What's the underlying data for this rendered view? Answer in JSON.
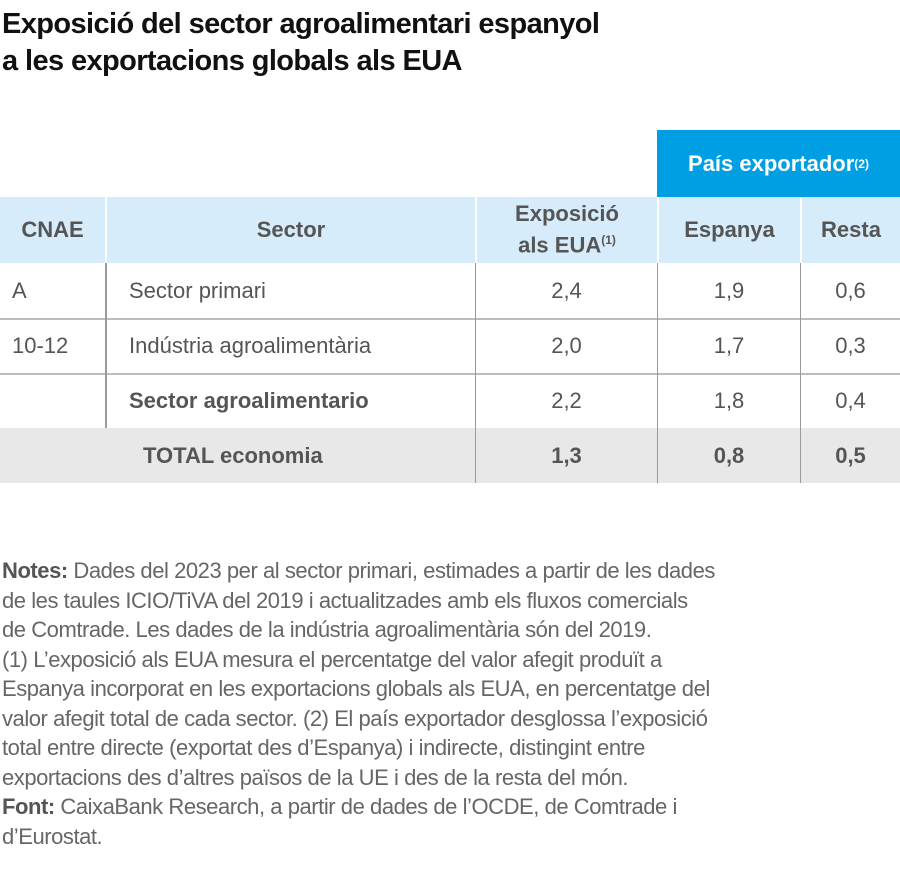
{
  "title": [
    "Exposició del sector agroalimentari espanyol",
    "a les exportacions globals als EUA"
  ],
  "colors": {
    "header_blue": "#009fe3",
    "header_light": "#d6ecfa",
    "total_bg": "#e8e8e8"
  },
  "table": {
    "group_header": {
      "label": "País exportador",
      "sup": "(2)"
    },
    "headers": {
      "cnae": "CNAE",
      "sector": "Sector",
      "exposure_line1": "Exposició",
      "exposure_line2": "als EUA",
      "exposure_sup": "(1)",
      "spain": "Espanya",
      "rest": "Resta"
    },
    "rows": [
      {
        "cnae": "A",
        "sector": "Sector primari",
        "exposure": "2,4",
        "spain": "1,9",
        "rest": "0,6"
      },
      {
        "cnae": "10-12",
        "sector": "Indústria agroalimentària",
        "exposure": "2,0",
        "spain": "1,7",
        "rest": "0,3"
      },
      {
        "cnae": "",
        "sector": "Sector agroalimentario",
        "exposure": "2,2",
        "spain": "1,8",
        "rest": "0,4"
      }
    ],
    "total": {
      "label": "TOTAL economia",
      "exposure": "1,3",
      "spain": "0,8",
      "rest": "0,5"
    }
  },
  "notes": {
    "notes_label": "Notes:",
    "lines": [
      " Dades del 2023 per al sector primari, estimades a partir de les dades",
      "de les taules ICIO/TiVA del 2019 i actualitzades amb els fluxos comercials",
      "de Comtrade. Les dades de la indústria agroalimentària són del 2019.",
      "(1) L’exposició als EUA mesura el percentatge del valor afegit produït a",
      "Espanya incorporat en les exportacions globals als EUA, en percentatge del",
      "valor afegit total de cada sector. (2) El país exportador desglossa l’exposició",
      "total entre directe (exportat des d’Espanya) i indirecte, distingint entre",
      "exportacions des d’altres països de la UE i des de la resta del món."
    ],
    "source_label": "Font:",
    "source_lines": [
      " CaixaBank Research, a partir de dades de l’OCDE, de Comtrade i",
      "d’Eurostat."
    ]
  }
}
